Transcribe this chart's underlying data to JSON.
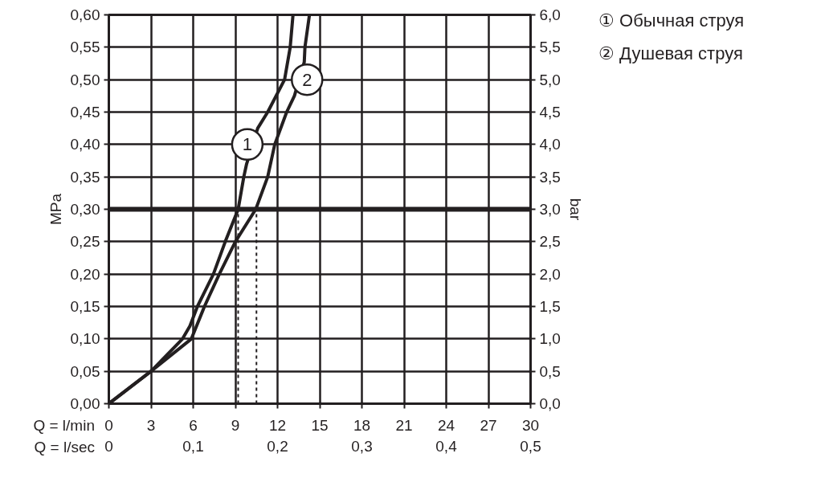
{
  "chart_data": {
    "type": "line",
    "xlabel": "Q = l/min",
    "x2label": "Q = l/sec",
    "ylabel": "MPa",
    "y2label": "bar",
    "xlim": [
      0,
      30
    ],
    "xticks": [
      0,
      3,
      6,
      9,
      12,
      15,
      18,
      21,
      24,
      27,
      30
    ],
    "x2lim": [
      0,
      0.5
    ],
    "x2ticks": [
      0,
      {
        "value": 0.1,
        "label": "0,1"
      },
      {
        "value": 0.2,
        "label": "0,2"
      },
      {
        "value": 0.3,
        "label": "0,3"
      },
      {
        "value": 0.4,
        "label": "0,4"
      },
      {
        "value": 0.5,
        "label": "0,5"
      }
    ],
    "ylim": [
      0,
      0.6
    ],
    "yticks": [
      {
        "value": 0,
        "label": "0,00"
      },
      {
        "value": 0.05,
        "label": "0,05"
      },
      {
        "value": 0.1,
        "label": "0,10"
      },
      {
        "value": 0.15,
        "label": "0,15"
      },
      {
        "value": 0.2,
        "label": "0,20"
      },
      {
        "value": 0.25,
        "label": "0,25"
      },
      {
        "value": 0.3,
        "label": "0,30"
      },
      {
        "value": 0.35,
        "label": "0,35"
      },
      {
        "value": 0.4,
        "label": "0,40"
      },
      {
        "value": 0.45,
        "label": "0,45"
      },
      {
        "value": 0.5,
        "label": "0,50"
      },
      {
        "value": 0.55,
        "label": "0,55"
      },
      {
        "value": 0.6,
        "label": "0,60"
      }
    ],
    "y2lim": [
      0,
      6
    ],
    "y2ticks": [
      {
        "value": 0,
        "label": "0,0"
      },
      {
        "value": 0.5,
        "label": "0,5"
      },
      {
        "value": 1,
        "label": "1,0"
      },
      {
        "value": 1.5,
        "label": "1,5"
      },
      {
        "value": 2,
        "label": "2,0"
      },
      {
        "value": 2.5,
        "label": "2,5"
      },
      {
        "value": 3,
        "label": "3,0"
      },
      {
        "value": 3.5,
        "label": "3,5"
      },
      {
        "value": 4,
        "label": "4,0"
      },
      {
        "value": 4.5,
        "label": "4,5"
      },
      {
        "value": 5,
        "label": "5,0"
      },
      {
        "value": 5.5,
        "label": "5,5"
      },
      {
        "value": 6,
        "label": "6,0"
      }
    ],
    "grid": true,
    "legend": "top right",
    "marker": "none",
    "line_style": "solid",
    "series": [
      {
        "name": "① Обычная струя",
        "color": "#231f20",
        "x": [
          0,
          3,
          5.24,
          5.77,
          6.3,
          7.44,
          8.28,
          9.2,
          9.6,
          9.8,
          10.59,
          11.3,
          12.5,
          12.9,
          13.1
        ],
        "values": [
          0,
          0.05,
          0.1,
          0.12,
          0.15,
          0.2,
          0.25,
          0.3,
          0.35,
          0.37,
          0.425,
          0.45,
          0.5,
          0.55,
          0.6
        ]
      },
      {
        "name": "② Душевая струя",
        "color": "#231f20",
        "x": [
          0,
          3,
          5.87,
          6.8,
          7.86,
          9.0,
          10.45,
          11.3,
          11.8,
          12.65,
          13.2,
          13.9,
          13.95,
          14.27
        ],
        "values": [
          0,
          0.05,
          0.1,
          0.15,
          0.2,
          0.25,
          0.3,
          0.35,
          0.4,
          0.45,
          0.475,
          0.527,
          0.55,
          0.6
        ]
      },
      {
        "color": "#231f20",
        "line_style": "dashed",
        "x": [
          9.2,
          9.2
        ],
        "values": [
          0,
          0.3
        ]
      },
      {
        "color": "#231f20",
        "line_style": "dashed",
        "x": [
          10.5,
          10.5
        ],
        "values": [
          0,
          0.3
        ]
      }
    ],
    "ref_lines": [
      {
        "axis": "y",
        "value": 0.3,
        "color": "#231f20"
      }
    ],
    "annotations": [
      {
        "text": "1",
        "x": 9.85,
        "y": 0.4
      },
      {
        "text": "2",
        "x": 14.1,
        "y": 0.5
      }
    ]
  }
}
